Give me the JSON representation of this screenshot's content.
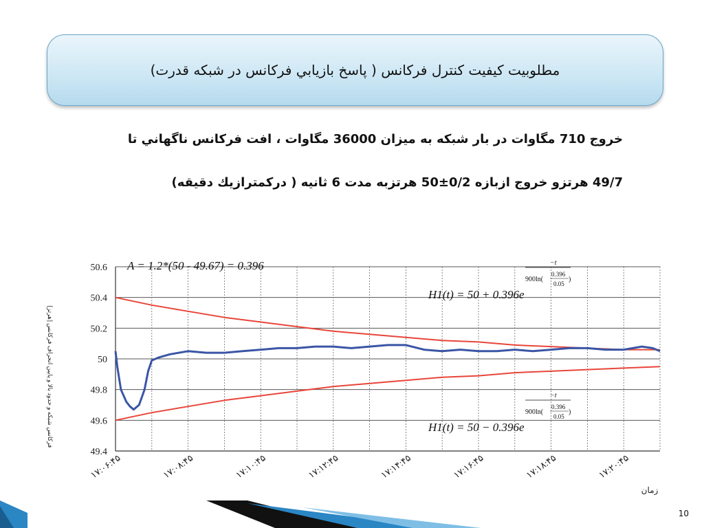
{
  "slide": {
    "title": "مطلوبيت كيفيت كنترل فركانس ( پاسخ بازيابي فركانس در شبكه قدرت)",
    "line1": "خروج 710 مگاوات در بار شبکه به میزان 36000 مگاوات ، افت فرکانس ناگهاني تا",
    "line2": "49/7 هرتزو خروج ازبازه 0/2±50 هرتزبه مدت 6 ثانيه ( درکمترازيك دقيقه)",
    "page_number": "10"
  },
  "colors": {
    "title_gradient_top": "#eaf5fb",
    "title_gradient_bottom": "#b6daee",
    "envelope_color": "#e8453a",
    "response_color": "#3a55a5",
    "deco_blue": "#1f6fa6",
    "deco_black": "#111111"
  },
  "chart_data": {
    "type": "line",
    "ylabel": "فرکانس شبکه و حدود بالا و پایین انحراف فرکانس [هرتز]",
    "xlabel": "زمان",
    "y_ticks": [
      "50.6",
      "50.4",
      "50.2",
      "50",
      "49.8",
      "49.6",
      "49.4"
    ],
    "ylim": [
      49.4,
      50.6
    ],
    "x_ticks": [
      "۱۷:۰۶:۴۵",
      "۱۷:۰۸:۴۵",
      "۱۷:۱۰:۴۵",
      "۱۷:۱۲:۴۵",
      "۱۷:۱۴:۴۵",
      "۱۷:۱۶:۴۵",
      "۱۷:۱۸:۴۵",
      "۱۷:۲۰:۴۵"
    ],
    "annotation_A": "A = 1.2*(50 - 49.67) = 0.396",
    "upper_formula": "H1(t) = 50 + 0.396e",
    "lower_formula": "H1(t) = 50 − 0.396e",
    "exponent_num": "−t",
    "exponent_den_prefix": "900ln(",
    "exponent_frac_num": "0.396",
    "exponent_frac_den": "0.05",
    "exponent_den_suffix": ")",
    "grid": "on",
    "series": [
      {
        "name": "H1(t) = 50 + 0.396e",
        "x": [
          0,
          1,
          2,
          3,
          4,
          5,
          6,
          7,
          8,
          9,
          10,
          11,
          12,
          13,
          14,
          15
        ],
        "values": [
          50.4,
          50.35,
          50.31,
          50.27,
          50.24,
          50.21,
          50.18,
          50.16,
          50.14,
          50.12,
          50.11,
          50.09,
          50.08,
          50.07,
          50.06,
          50.06
        ]
      },
      {
        "name": "H1(t) = 50 − 0.396e",
        "x": [
          0,
          1,
          2,
          3,
          4,
          5,
          6,
          7,
          8,
          9,
          10,
          11,
          12,
          13,
          14,
          15
        ],
        "values": [
          49.6,
          49.65,
          49.69,
          49.73,
          49.76,
          49.79,
          49.82,
          49.84,
          49.86,
          49.88,
          49.89,
          49.91,
          49.92,
          49.93,
          49.94,
          49.95
        ]
      },
      {
        "name": "",
        "x": [
          0,
          0.05,
          0.15,
          0.3,
          0.4,
          0.5,
          0.65,
          0.8,
          0.9,
          1.0,
          1.2,
          1.5,
          2.0,
          2.5,
          3.0,
          3.5,
          4.0,
          4.5,
          5.0,
          5.5,
          6.0,
          6.5,
          7.0,
          7.5,
          8.0,
          8.5,
          9.0,
          9.5,
          10.0,
          10.5,
          11.0,
          11.5,
          12.0,
          12.5,
          13.0,
          13.5,
          14.0,
          14.5,
          14.8,
          15.0
        ],
        "values": [
          50.05,
          49.95,
          49.8,
          49.72,
          49.69,
          49.67,
          49.7,
          49.8,
          49.92,
          49.99,
          50.01,
          50.03,
          50.05,
          50.04,
          50.04,
          50.05,
          50.06,
          50.07,
          50.07,
          50.08,
          50.08,
          50.07,
          50.08,
          50.09,
          50.09,
          50.06,
          50.05,
          50.06,
          50.05,
          50.05,
          50.06,
          50.05,
          50.06,
          50.07,
          50.07,
          50.06,
          50.06,
          50.08,
          50.07,
          50.05
        ]
      }
    ]
  }
}
